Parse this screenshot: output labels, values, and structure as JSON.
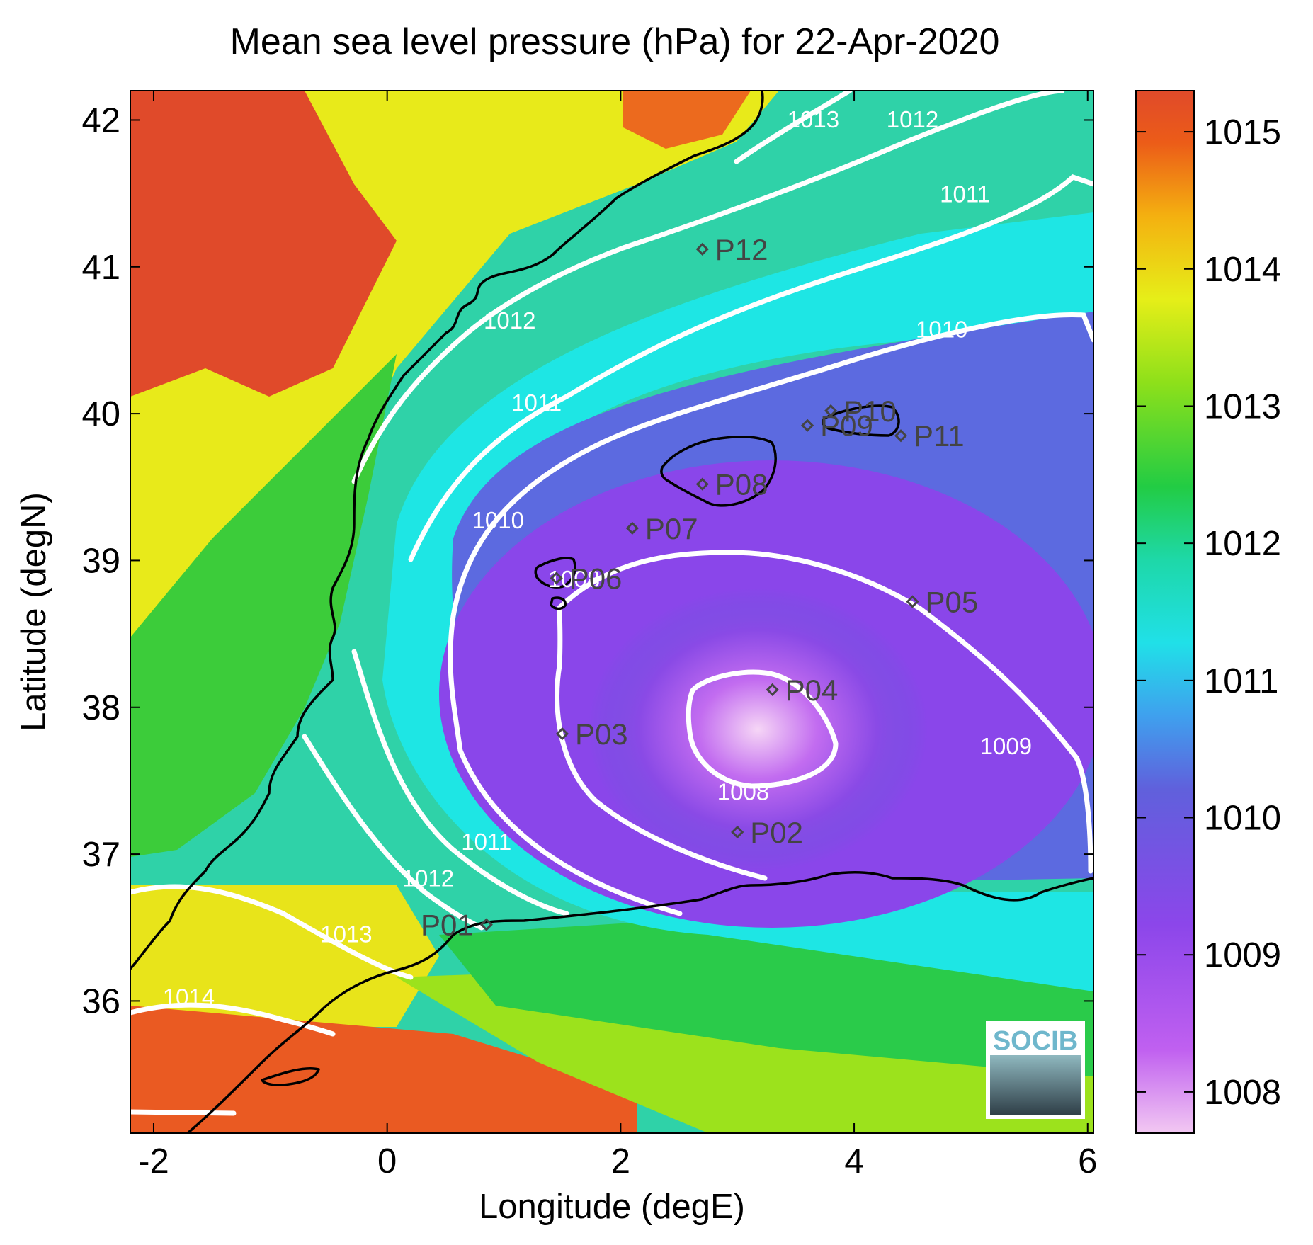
{
  "title": "Mean sea level pressure (hPa) for 22-Apr-2020",
  "axes": {
    "xlabel": "Longitude (degE)",
    "ylabel": "Latitude (degN)",
    "xlim": [
      -2.2,
      6.05
    ],
    "ylim": [
      35.1,
      42.2
    ],
    "xticks": [
      -2,
      0,
      2,
      4,
      6
    ],
    "yticks": [
      36,
      37,
      38,
      39,
      40,
      41,
      42
    ]
  },
  "colorbar": {
    "min": 1007.7,
    "max": 1015.3,
    "ticks": [
      1008,
      1009,
      1010,
      1011,
      1012,
      1013,
      1014,
      1015
    ],
    "colormap": [
      "#f2c8f2",
      "#b046f0",
      "#7a50e0",
      "#5a68dc",
      "#3fa8ee",
      "#1ee8e8",
      "#1ed3a0",
      "#22cc44",
      "#86e21a",
      "#e6ee18",
      "#f4b010",
      "#e45020",
      "#e04a2a"
    ]
  },
  "chart_data": {
    "type": "heatmap",
    "title": "Mean sea level pressure (hPa) for 22-Apr-2020",
    "xlabel": "Longitude (degE)",
    "ylabel": "Latitude (degN)",
    "x_range": [
      -2.2,
      6.05
    ],
    "y_range": [
      35.1,
      42.2
    ],
    "z_range": [
      1007.7,
      1015.3
    ],
    "contour_levels": [
      1008,
      1009,
      1010,
      1011,
      1012,
      1013,
      1014
    ],
    "contour_labels": [
      {
        "text": "1013",
        "lon": 3.65,
        "lat": 41.95
      },
      {
        "text": "1012",
        "lon": 4.5,
        "lat": 41.95
      },
      {
        "text": "1011",
        "lon": 4.95,
        "lat": 41.44
      },
      {
        "text": "1012",
        "lon": 1.05,
        "lat": 40.58
      },
      {
        "text": "1010",
        "lon": 4.75,
        "lat": 40.52
      },
      {
        "text": "1011",
        "lon": 1.28,
        "lat": 40.02
      },
      {
        "text": "1010",
        "lon": 0.95,
        "lat": 39.22
      },
      {
        "text": "1008",
        "lon": 1.6,
        "lat": 38.82
      },
      {
        "text": "1008",
        "lon": 3.05,
        "lat": 37.37
      },
      {
        "text": "1009",
        "lon": 5.3,
        "lat": 37.68
      },
      {
        "text": "1011",
        "lon": 0.85,
        "lat": 37.03
      },
      {
        "text": "1012",
        "lon": 0.35,
        "lat": 36.78
      },
      {
        "text": "1013",
        "lon": -0.35,
        "lat": 36.4
      },
      {
        "text": "1014",
        "lon": -1.7,
        "lat": 35.97
      }
    ],
    "stations": [
      {
        "name": "P01",
        "lon": 0.85,
        "lat": 36.52
      },
      {
        "name": "P02",
        "lon": 3.0,
        "lat": 37.15
      },
      {
        "name": "P03",
        "lon": 1.5,
        "lat": 37.82
      },
      {
        "name": "P04",
        "lon": 3.3,
        "lat": 38.12
      },
      {
        "name": "P05",
        "lon": 4.5,
        "lat": 38.72
      },
      {
        "name": "P06",
        "lon": 1.45,
        "lat": 38.88
      },
      {
        "name": "P07",
        "lon": 2.1,
        "lat": 39.22
      },
      {
        "name": "P08",
        "lon": 2.7,
        "lat": 39.52
      },
      {
        "name": "P09",
        "lon": 3.6,
        "lat": 39.92
      },
      {
        "name": "P10",
        "lon": 3.8,
        "lat": 40.02
      },
      {
        "name": "P11",
        "lon": 4.4,
        "lat": 39.85
      },
      {
        "name": "P12",
        "lon": 2.7,
        "lat": 41.12
      }
    ]
  },
  "logo": {
    "text": "SOCIB"
  }
}
